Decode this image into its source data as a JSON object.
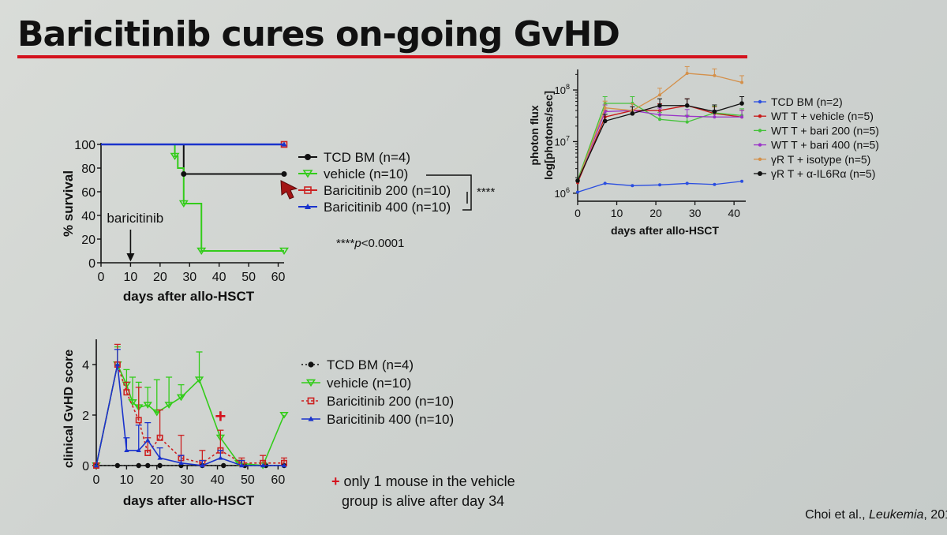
{
  "slide": {
    "title": "Baricitinib cures on-going GvHD",
    "colors": {
      "title_rule": "#d4121d",
      "background": "#d4d7d4"
    },
    "footnote_symbol": "+",
    "footnote": "only 1 mouse in the vehicle group is alive after day 34",
    "footnote_line1": "only 1 mouse in the vehicle",
    "footnote_line2": "group is alive after day 34",
    "citation_authors": "Choi et al., ",
    "citation_journal": "Leukemia",
    "citation_year": ", 201"
  },
  "chart_data": [
    {
      "id": "survival",
      "type": "line",
      "step": true,
      "ylabel": "% survival",
      "xlabel": "days after allo-HSCT",
      "xlim": [
        0,
        62
      ],
      "ylim": [
        0,
        100
      ],
      "xticks": [
        0,
        10,
        20,
        30,
        40,
        50,
        60
      ],
      "yticks": [
        0,
        20,
        40,
        60,
        80,
        100
      ],
      "annotation": {
        "text": "baricitinib",
        "x": 10
      },
      "significance": {
        "marker": "****",
        "note_prefix": "****",
        "note_p": "p",
        "note_value": "<0.0001"
      },
      "series": [
        {
          "name": "TCD BM (n=4)",
          "color": "#111111",
          "marker": "circle",
          "points": [
            [
              0,
              100
            ],
            [
              28,
              100
            ],
            [
              28,
              75
            ],
            [
              62,
              75
            ]
          ]
        },
        {
          "name": "vehicle (n=10)",
          "color": "#33cc1a",
          "marker": "tri-down",
          "points": [
            [
              0,
              100
            ],
            [
              25,
              100
            ],
            [
              25,
              90
            ],
            [
              26,
              90
            ],
            [
              26,
              80
            ],
            [
              28,
              80
            ],
            [
              28,
              50
            ],
            [
              34,
              50
            ],
            [
              34,
              10
            ],
            [
              62,
              10
            ]
          ]
        },
        {
          "name": "Baricitinib 200 (n=10)",
          "color": "#cc2222",
          "marker": "square-open",
          "points": [
            [
              0,
              100
            ],
            [
              62,
              100
            ]
          ]
        },
        {
          "name": "Baricitinib 400 (n=10)",
          "color": "#1a33cc",
          "marker": "tri-up",
          "points": [
            [
              0,
              100
            ],
            [
              62,
              100
            ]
          ]
        }
      ]
    },
    {
      "id": "clinical_score",
      "type": "line",
      "ylabel": "clinical GvHD score",
      "xlabel": "days after allo-HSCT",
      "xlim": [
        0,
        62
      ],
      "ylim": [
        0,
        5
      ],
      "xticks": [
        0,
        10,
        20,
        30,
        40,
        50,
        60
      ],
      "yticks": [
        0,
        2,
        4
      ],
      "annotation": {
        "text": "+",
        "x": 41,
        "y": 1.7
      },
      "series": [
        {
          "name": "TCD BM (n=4)",
          "color": "#111111",
          "marker": "circle",
          "x": [
            0,
            7,
            14,
            17,
            21,
            28,
            35,
            42,
            49,
            56,
            62
          ],
          "y": [
            0,
            0,
            0,
            0,
            0,
            0,
            0,
            0,
            0,
            0,
            0
          ]
        },
        {
          "name": "vehicle (n=10)",
          "color": "#33cc1a",
          "marker": "tri-down",
          "x": [
            0,
            7,
            10,
            12,
            14,
            17,
            20,
            24,
            28,
            34,
            41,
            47,
            55,
            62
          ],
          "y": [
            0,
            4,
            3.2,
            2.5,
            2.3,
            2.4,
            2.1,
            2.4,
            2.7,
            3.4,
            1.1,
            0.1,
            0,
            2.0
          ],
          "err": [
            0,
            0.7,
            0.6,
            1.0,
            1.0,
            0.7,
            1.3,
            1.1,
            0.5,
            1.1,
            0,
            0,
            0,
            0
          ]
        },
        {
          "name": "Baricitinib 200 (n=10)",
          "color": "#cc2222",
          "marker": "square-open",
          "x": [
            0,
            7,
            10,
            14,
            17,
            21,
            28,
            35,
            41,
            48,
            55,
            62
          ],
          "y": [
            0,
            4,
            2.9,
            1.8,
            0.5,
            1.1,
            0.3,
            0.1,
            0.6,
            0.1,
            0.1,
            0.1
          ],
          "err": [
            0,
            0.8,
            0.4,
            1.3,
            0.6,
            1.1,
            0.9,
            0.5,
            0.8,
            0.2,
            0.3,
            0.2
          ]
        },
        {
          "name": "Baricitinib 400 (n=10)",
          "color": "#1a33cc",
          "marker": "tri-up",
          "x": [
            0,
            7,
            10,
            14,
            17,
            21,
            28,
            35,
            41,
            48,
            55,
            62
          ],
          "y": [
            0,
            4,
            0.6,
            0.6,
            1.0,
            0.3,
            0.1,
            0,
            0.3,
            0,
            0,
            0
          ],
          "err": [
            0,
            0.6,
            0.5,
            1.0,
            0.7,
            0.4,
            0.3,
            0.2,
            0.3,
            0.2,
            0,
            0
          ]
        }
      ]
    },
    {
      "id": "photon_flux",
      "type": "line",
      "ylabel": "photon flux",
      "ylabel2": "log[photons/sec]",
      "xlabel": "days after allo-HSCT",
      "yscale": "log",
      "xlim": [
        0,
        43
      ],
      "ylim": [
        700000,
        250000000
      ],
      "xticks": [
        0,
        10,
        20,
        30,
        40
      ],
      "yticks": [
        1000000,
        10000000,
        100000000
      ],
      "ytick_labels": [
        "10",
        "10",
        "10"
      ],
      "ytick_exponents": [
        "6",
        "7",
        "8"
      ],
      "series": [
        {
          "name": "TCD BM (n=2)",
          "color": "#2a4ee0",
          "marker": "dot",
          "x": [
            0,
            7,
            14,
            21,
            28,
            35,
            42
          ],
          "y": [
            1050000,
            1550000,
            1400000,
            1450000,
            1550000,
            1480000,
            1700000
          ]
        },
        {
          "name": "WT T + vehicle (n=5)",
          "color": "#c81818",
          "marker": "dot",
          "x": [
            0,
            7,
            14,
            21,
            28,
            35,
            42
          ],
          "y": [
            1600000,
            30000000,
            40000000,
            40000000,
            50000000,
            35000000,
            30000000
          ]
        },
        {
          "name": "WT T + bari 200 (n=5)",
          "color": "#44c23a",
          "marker": "dot",
          "x": [
            0,
            7,
            14,
            21,
            28,
            35,
            42
          ],
          "y": [
            1800000,
            55000000,
            55000000,
            27000000,
            24000000,
            36000000,
            32000000
          ]
        },
        {
          "name": "WT T + bari 400 (n=5)",
          "color": "#9a35c8",
          "marker": "dot",
          "x": [
            0,
            7,
            14,
            21,
            28,
            35,
            42
          ],
          "y": [
            1700000,
            38000000,
            40000000,
            33000000,
            31000000,
            30000000,
            30000000
          ]
        },
        {
          "name": "γR T + isotype (n=5)",
          "color": "#d4904a",
          "marker": "dot",
          "x": [
            0,
            7,
            14,
            21,
            28,
            35,
            42
          ],
          "y": [
            1700000,
            45000000,
            40000000,
            80000000,
            210000000,
            190000000,
            140000000
          ]
        },
        {
          "name": "γR T + α-IL6Rα (n=5)",
          "color": "#111111",
          "marker": "dot",
          "x": [
            0,
            7,
            14,
            21,
            28,
            35,
            42
          ],
          "y": [
            1750000,
            25000000,
            35000000,
            50000000,
            50000000,
            38000000,
            55000000
          ]
        }
      ]
    }
  ]
}
